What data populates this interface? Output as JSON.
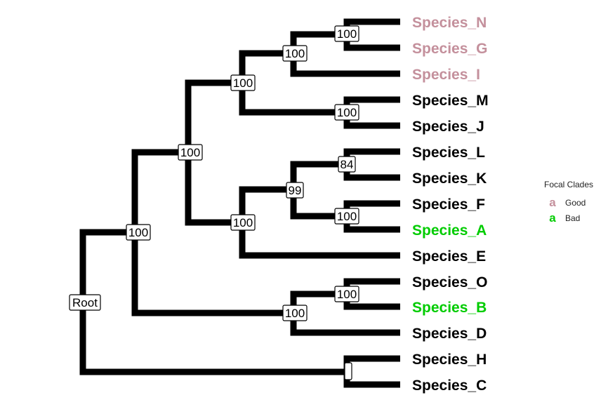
{
  "tips": [
    {
      "label": "Species_N",
      "clade": "good"
    },
    {
      "label": "Species_G",
      "clade": "good"
    },
    {
      "label": "Species_I",
      "clade": "good"
    },
    {
      "label": "Species_M",
      "clade": "none"
    },
    {
      "label": "Species_J",
      "clade": "none"
    },
    {
      "label": "Species_L",
      "clade": "none"
    },
    {
      "label": "Species_K",
      "clade": "none"
    },
    {
      "label": "Species_F",
      "clade": "none"
    },
    {
      "label": "Species_A",
      "clade": "bad"
    },
    {
      "label": "Species_E",
      "clade": "none"
    },
    {
      "label": "Species_O",
      "clade": "none"
    },
    {
      "label": "Species_B",
      "clade": "bad"
    },
    {
      "label": "Species_D",
      "clade": "none"
    },
    {
      "label": "Species_H",
      "clade": "none"
    },
    {
      "label": "Species_C",
      "clade": "none"
    }
  ],
  "nodes": [
    {
      "id": "n_ng",
      "label": "100"
    },
    {
      "id": "n_ngi",
      "label": "100"
    },
    {
      "id": "n_mj",
      "label": "100"
    },
    {
      "id": "n_ngimj",
      "label": "100"
    },
    {
      "id": "n_lk",
      "label": "84"
    },
    {
      "id": "n_fa",
      "label": "100"
    },
    {
      "id": "n_lkfa",
      "label": "99"
    },
    {
      "id": "n_lkfae",
      "label": "100"
    },
    {
      "id": "n_top",
      "label": "100"
    },
    {
      "id": "n_ob",
      "label": "100"
    },
    {
      "id": "n_obd",
      "label": "100"
    },
    {
      "id": "n_big",
      "label": "100"
    },
    {
      "id": "n_hc",
      "label": ""
    },
    {
      "id": "n_root",
      "label": "Root"
    }
  ],
  "legend": {
    "title": "Focal Clades",
    "items": [
      {
        "swatch": "a",
        "label": "Good",
        "color": "#c4909c"
      },
      {
        "swatch": "a",
        "label": "Bad",
        "color": "#00cc00"
      }
    ]
  },
  "colors": {
    "good": "#c4909c",
    "bad": "#00cc00",
    "none": "#000000"
  }
}
